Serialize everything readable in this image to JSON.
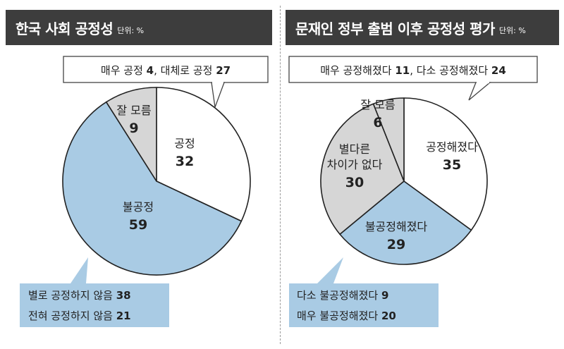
{
  "unit_label": "단위: %",
  "chart_data": [
    {
      "type": "pie",
      "title": "한국 사회 공정성",
      "slices": [
        {
          "label": "공정",
          "value": 32,
          "color": "#ffffff"
        },
        {
          "label": "불공정",
          "value": 59,
          "color": "#a9cbe4"
        },
        {
          "label": "잘 모름",
          "value": 9,
          "color": "#d6d6d6"
        }
      ],
      "top_callout": [
        {
          "text": "매우 공정",
          "value": "4"
        },
        {
          "text": "대체로 공정",
          "value": "27"
        }
      ],
      "bottom_callout": [
        {
          "text": "별로 공정하지 않음",
          "value": "38"
        },
        {
          "text": "전혀 공정하지 않음",
          "value": "21"
        }
      ]
    },
    {
      "type": "pie",
      "title": "문재인 정부 출범 이후 공정성 평가",
      "slices": [
        {
          "label": "공정해졌다",
          "value": 35,
          "color": "#ffffff"
        },
        {
          "label": "불공정해졌다",
          "value": 29,
          "color": "#a9cbe4"
        },
        {
          "label": "별다른 차이가 없다",
          "value": 30,
          "color": "#d6d6d6"
        },
        {
          "label": "잘 모름",
          "value": 6,
          "color": "#d6d6d6"
        }
      ],
      "top_callout": [
        {
          "text": "매우 공정해졌다",
          "value": "11"
        },
        {
          "text": "다소 공정해졌다",
          "value": "24"
        }
      ],
      "bottom_callout": [
        {
          "text": "다소 불공정해졌다",
          "value": "9"
        },
        {
          "text": "매우 불공정해졌다",
          "value": "20"
        }
      ]
    }
  ]
}
